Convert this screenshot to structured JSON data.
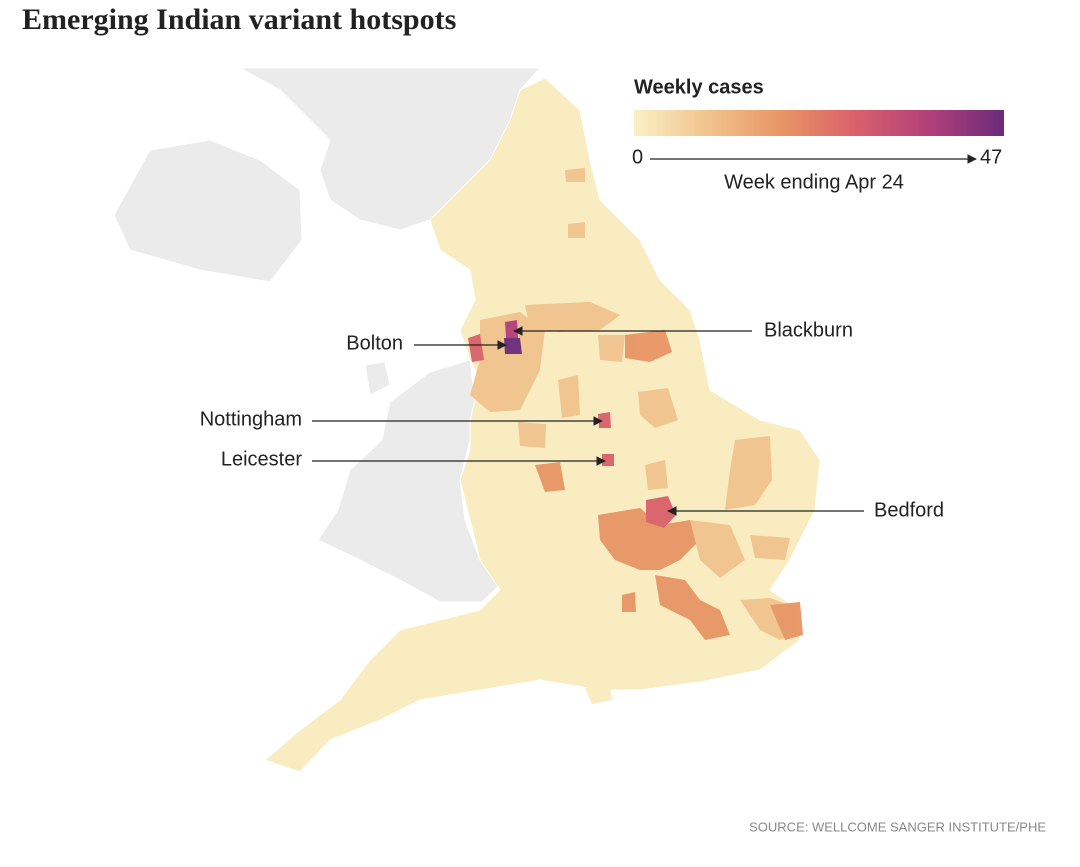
{
  "header": {
    "title": "Emerging Indian variant hotspots"
  },
  "legend": {
    "title": "Weekly cases",
    "range": [
      0,
      47
    ],
    "subtitle": "Week ending Apr 24",
    "colors": [
      "#faf0c6",
      "#f1c38d",
      "#e89565",
      "#d9606a",
      "#b1407a",
      "#6b2a7a"
    ]
  },
  "annotations": [
    "Bolton",
    "Blackburn",
    "Nottingham",
    "Leicester",
    "Bedford"
  ],
  "source": "SOURCE: WELLCOME SANGER INSTITUTE/PHE"
}
